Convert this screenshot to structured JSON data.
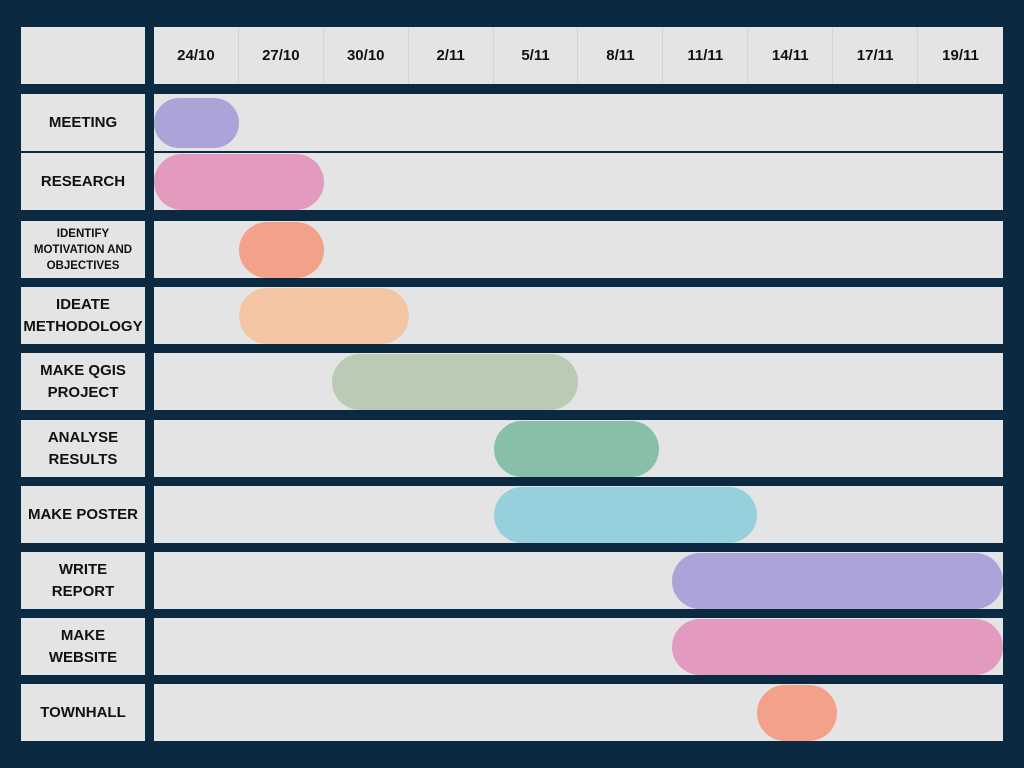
{
  "chart_data": {
    "type": "gantt",
    "title": "",
    "timeline_labels": [
      "24/10",
      "27/10",
      "30/10",
      "2/11",
      "5/11",
      "8/11",
      "11/11",
      "14/11",
      "17/11",
      "19/11"
    ],
    "tasks": [
      {
        "label": "MEETING",
        "start": 0.0,
        "end": 1.0,
        "color": "#aaa4d8"
      },
      {
        "label": "RESEARCH",
        "start": 0.0,
        "end": 2.0,
        "color": "#e29bbf"
      },
      {
        "label": "IDENTIFY\nMOTIVATION AND\nOBJECTIVES",
        "start": 1.0,
        "end": 2.0,
        "color": "#f4a18c"
      },
      {
        "label": "IDEATE\nMETHODOLOGY",
        "start": 1.0,
        "end": 3.0,
        "color": "#f3c5a2"
      },
      {
        "label": "MAKE QGIS\nPROJECT",
        "start": 2.1,
        "end": 5.0,
        "color": "#bacbb5"
      },
      {
        "label": "ANALYSE\nRESULTS",
        "start": 4.0,
        "end": 5.95,
        "color": "#88bfa9"
      },
      {
        "label": "MAKE POSTER",
        "start": 4.0,
        "end": 7.1,
        "color": "#95d0dc"
      },
      {
        "label": "WRITE\nREPORT",
        "start": 6.1,
        "end": 10.0,
        "color": "#aaa4d8"
      },
      {
        "label": "MAKE\nWEBSITE",
        "start": 6.1,
        "end": 10.0,
        "color": "#e29bbf"
      },
      {
        "label": "TOWNHALL",
        "start": 7.1,
        "end": 8.05,
        "color": "#f4a18c"
      }
    ]
  }
}
